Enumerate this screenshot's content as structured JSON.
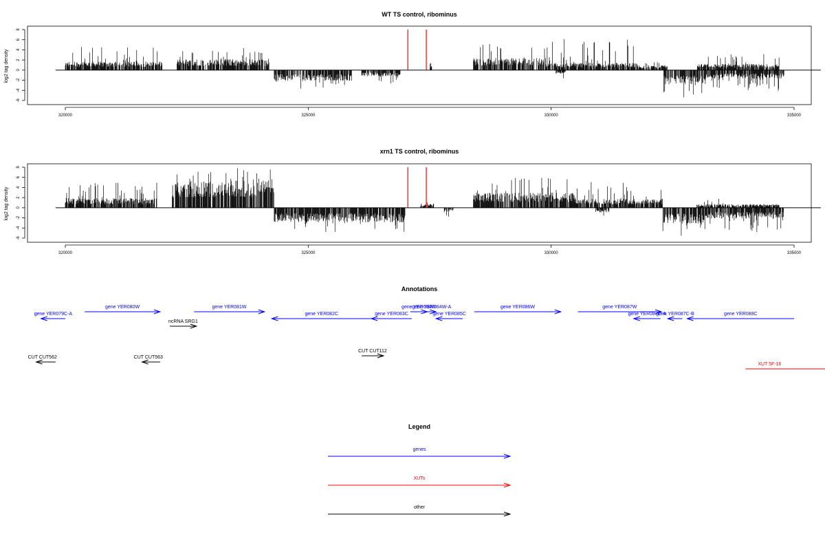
{
  "chart_data": [
    {
      "type": "bar",
      "title": "WT TS control, ribominus",
      "ylabel": "log2 tag density",
      "xlabel": "",
      "xlim": [
        319600,
        335700
      ],
      "ylim": [
        -6,
        8
      ],
      "xticks": [
        "320000",
        "325000",
        "330000",
        "335000"
      ],
      "yticks": [
        "8",
        "6",
        "4",
        "2",
        "0",
        "-2",
        "-4",
        "-6"
      ],
      "positive_segments": [
        {
          "start": 320000,
          "end": 322000,
          "base": 1.4,
          "peak": 4.8
        },
        {
          "start": 322300,
          "end": 324200,
          "base": 1.8,
          "peak": 4.8
        },
        {
          "start": 327500,
          "end": 327550,
          "base": 1.2,
          "peak": 1.5
        },
        {
          "start": 328400,
          "end": 329900,
          "base": 2.0,
          "peak": 5.2
        },
        {
          "start": 329900,
          "end": 331800,
          "base": 1.2,
          "peak": 6.2
        },
        {
          "start": 331800,
          "end": 332400,
          "base": 0.8,
          "peak": 1.6
        },
        {
          "start": 333000,
          "end": 334700,
          "base": 1.0,
          "peak": 3.2
        }
      ],
      "negative_segments": [
        {
          "start": 324300,
          "end": 325900,
          "base": -1.8,
          "peak": -4.2
        },
        {
          "start": 326100,
          "end": 326900,
          "base": -1.0,
          "peak": -2.8
        },
        {
          "start": 330100,
          "end": 330300,
          "base": -0.6,
          "peak": -2.4
        },
        {
          "start": 332300,
          "end": 333200,
          "base": -2.4,
          "peak": -5.8
        },
        {
          "start": 333200,
          "end": 334800,
          "base": -1.4,
          "peak": -4.4
        }
      ],
      "red_markers": [
        {
          "x": 327050,
          "value": 8
        },
        {
          "x": 327430,
          "value": 8
        }
      ]
    },
    {
      "type": "bar",
      "title": "xrn1 TS control, ribominus",
      "ylabel": "log2 tag density",
      "xlabel": "",
      "xlim": [
        319600,
        335700
      ],
      "ylim": [
        -6,
        8
      ],
      "xticks": [
        "320000",
        "325000",
        "330000",
        "335000"
      ],
      "yticks": [
        "8",
        "6",
        "4",
        "2",
        "0",
        "-2",
        "-4",
        "-6"
      ],
      "positive_segments": [
        {
          "start": 320000,
          "end": 321900,
          "base": 1.6,
          "peak": 5.0
        },
        {
          "start": 322200,
          "end": 324300,
          "base": 4.5,
          "peak": 8.0
        },
        {
          "start": 327300,
          "end": 327600,
          "base": 0.6,
          "peak": 1.8
        },
        {
          "start": 328400,
          "end": 330500,
          "base": 2.5,
          "peak": 6.0
        },
        {
          "start": 330500,
          "end": 332300,
          "base": 1.5,
          "peak": 5.2
        },
        {
          "start": 333000,
          "end": 334700,
          "base": 0.6,
          "peak": 1.8
        }
      ],
      "negative_segments": [
        {
          "start": 324300,
          "end": 327000,
          "base": -2.4,
          "peak": -4.8
        },
        {
          "start": 327800,
          "end": 328000,
          "base": -0.6,
          "peak": -2.2
        },
        {
          "start": 330900,
          "end": 331200,
          "base": -0.8,
          "peak": -2.6
        },
        {
          "start": 332300,
          "end": 333200,
          "base": -2.6,
          "peak": -6.2
        },
        {
          "start": 333200,
          "end": 334800,
          "base": -1.8,
          "peak": -5.2
        }
      ],
      "red_markers": [
        {
          "x": 327050,
          "value": 8
        },
        {
          "x": 327430,
          "value": 8
        }
      ]
    }
  ],
  "annotations": {
    "title": "Annotations",
    "features": [
      {
        "label": "gene YER079C-A",
        "color": "#0000ff",
        "start": 319500,
        "end": 320000,
        "row": 2,
        "strand": "-"
      },
      {
        "label": "gene YER080W",
        "color": "#0000ff",
        "start": 320400,
        "end": 321950,
        "row": 1,
        "strand": "+"
      },
      {
        "label": "gene YER081W",
        "color": "#0000ff",
        "start": 322650,
        "end": 324100,
        "row": 1,
        "strand": "+"
      },
      {
        "label": "ncRNA SRG1",
        "color": "#000000",
        "start": 322150,
        "end": 322700,
        "row": 3,
        "strand": "+"
      },
      {
        "label": "gene YER082C",
        "color": "#0000ff",
        "start": 324250,
        "end": 326300,
        "row": 2,
        "strand": "-"
      },
      {
        "label": "gene YER083C",
        "color": "#0000ff",
        "start": 326300,
        "end": 327130,
        "row": 2,
        "strand": "-"
      },
      {
        "label": "gene YER084W",
        "color": "#0000ff",
        "start": 327100,
        "end": 327450,
        "row": 1,
        "strand": "+"
      },
      {
        "label": "gene YER084W-A",
        "color": "#0000ff",
        "start": 327450,
        "end": 327630,
        "row": 1,
        "strand": "+"
      },
      {
        "label": "gene YER085C",
        "color": "#0000ff",
        "start": 327630,
        "end": 328180,
        "row": 2,
        "strand": "-"
      },
      {
        "label": "gene YER086W",
        "color": "#0000ff",
        "start": 328420,
        "end": 330200,
        "row": 1,
        "strand": "+"
      },
      {
        "label": "gene YER087W",
        "color": "#0000ff",
        "start": 330550,
        "end": 332270,
        "row": 1,
        "strand": "+"
      },
      {
        "label": "gene YER087C-A",
        "color": "#0000ff",
        "start": 331700,
        "end": 332250,
        "row": 2,
        "strand": "-"
      },
      {
        "label": "gene YER087C-B",
        "color": "#0000ff",
        "start": 332400,
        "end": 332700,
        "row": 2,
        "strand": "-"
      },
      {
        "label": "gene YER088C",
        "color": "#0000ff",
        "start": 332800,
        "end": 335000,
        "row": 2,
        "strand": "-"
      },
      {
        "label": "CUT CUT562",
        "color": "#000000",
        "start": 319400,
        "end": 319800,
        "row": 4,
        "strand": "-"
      },
      {
        "label": "CUT CUT563",
        "color": "#000000",
        "start": 321580,
        "end": 321950,
        "row": 4,
        "strand": "-"
      },
      {
        "label": "CUT CUT112",
        "color": "#000000",
        "start": 326100,
        "end": 326550,
        "row": 5,
        "strand": "+"
      },
      {
        "label": "XUT 5F-16",
        "color": "#ff0000",
        "start": 334000,
        "end": 335000,
        "row": 6,
        "strand": "+"
      }
    ]
  },
  "legend": {
    "title": "Legend",
    "items": [
      {
        "label": "genes",
        "color": "#0000ff"
      },
      {
        "label": "XUTs",
        "color": "#ff0000"
      },
      {
        "label": "other",
        "color": "#000000"
      }
    ]
  }
}
